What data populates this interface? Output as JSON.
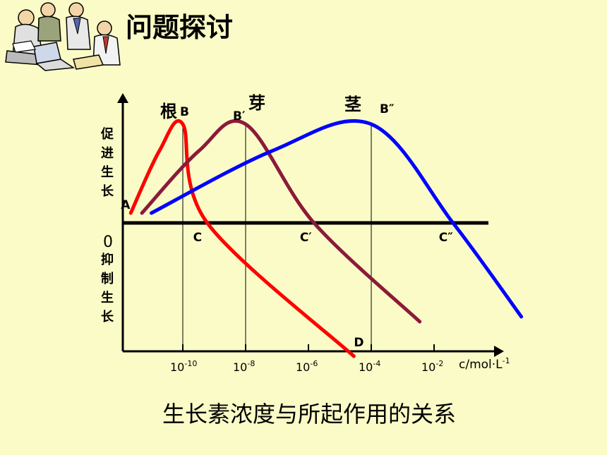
{
  "slide": {
    "title": "问题探讨",
    "caption": "生长素浓度与所起作用的关系",
    "clipart": "office-workers-clipart"
  },
  "colors": {
    "background": "#fbfbc7",
    "root": "#ff0000",
    "bud": "#8b1a3a",
    "stem": "#0000ff",
    "axis": "#000000"
  },
  "chart_data": {
    "type": "line",
    "title": "",
    "xlabel": "c/mol·L-1",
    "xscale": "log",
    "x_ticks": [
      {
        "base": "10",
        "exp": "-10",
        "value": 1e-10
      },
      {
        "base": "10",
        "exp": "-8",
        "value": 1e-08
      },
      {
        "base": "10",
        "exp": "-6",
        "value": 1e-06
      },
      {
        "base": "10",
        "exp": "-4",
        "value": 0.0001
      },
      {
        "base": "10",
        "exp": "-2",
        "value": 0.01
      }
    ],
    "x_unit": {
      "base": "c/mol·L",
      "exp": "-1"
    },
    "y_origin_label": "0",
    "y_positive_label": [
      "促",
      "进",
      "生",
      "长"
    ],
    "y_negative_label": [
      "抑",
      "制",
      "生",
      "长"
    ],
    "series": [
      {
        "name": "根",
        "color": "#ff0000",
        "points": [
          {
            "x": 2.2e-12,
            "y": 0.1
          },
          {
            "x": 1e-10,
            "y": 1.0
          },
          {
            "x": 6e-10,
            "y": 0.0
          },
          {
            "x": 2.8e-05,
            "y": -1.35
          }
        ],
        "labels": {
          "start": "A",
          "peak": "B",
          "zero": "C",
          "end": "D"
        }
      },
      {
        "name": "芽",
        "color": "#8b1a3a",
        "points": [
          {
            "x": 5e-12,
            "y": 0.1
          },
          {
            "x": 1e-08,
            "y": 1.0
          },
          {
            "x": 1.5e-06,
            "y": 0.0
          },
          {
            "x": 0.0035,
            "y": -1.0
          }
        ],
        "labels": {
          "peak": "B′",
          "zero": "C′"
        }
      },
      {
        "name": "茎",
        "color": "#0000ff",
        "points": [
          {
            "x": 1e-11,
            "y": 0.1
          },
          {
            "x": 0.0001,
            "y": 1.0
          },
          {
            "x": 0.04,
            "y": 0.0
          },
          {
            "x": 6,
            "y": -0.95
          }
        ],
        "labels": {
          "peak": "B″",
          "zero": "C″"
        }
      }
    ]
  }
}
